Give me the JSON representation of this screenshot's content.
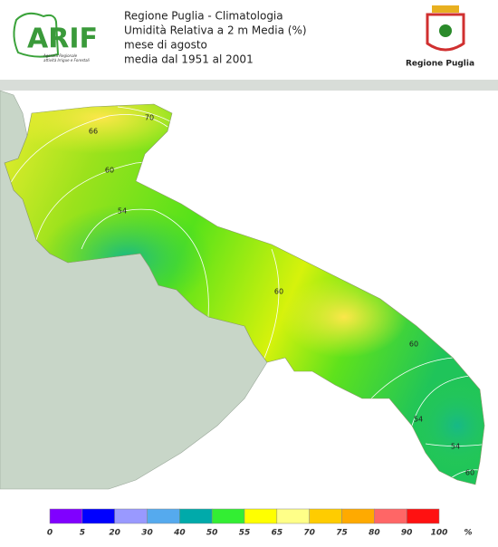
{
  "header": {
    "logo": "ARIF",
    "logo_subtitle": [
      "Agenzia Regionale",
      "attività Irrigue e Forestali"
    ],
    "lines": [
      "Regione Puglia - Climatologia",
      "Umidità Relativa a 2 m Media (%)",
      "mese di agosto",
      "media dal 1951 al 2001"
    ],
    "region_label": "Regione Puglia"
  },
  "map": {
    "contour_labels": [
      70,
      66,
      60,
      54,
      60,
      60,
      54,
      54,
      60
    ]
  },
  "legend": {
    "colors": [
      "#8000ff",
      "#0000ff",
      "#9999ff",
      "#55aaee",
      "#00aaaa",
      "#33ee33",
      "#ffff00",
      "#ffff88",
      "#ffcc00",
      "#ffaa00",
      "#ff6666",
      "#ff1111"
    ],
    "labels": [
      0,
      5,
      20,
      30,
      40,
      50,
      55,
      65,
      70,
      75,
      80,
      90,
      100
    ],
    "unit": "%"
  }
}
